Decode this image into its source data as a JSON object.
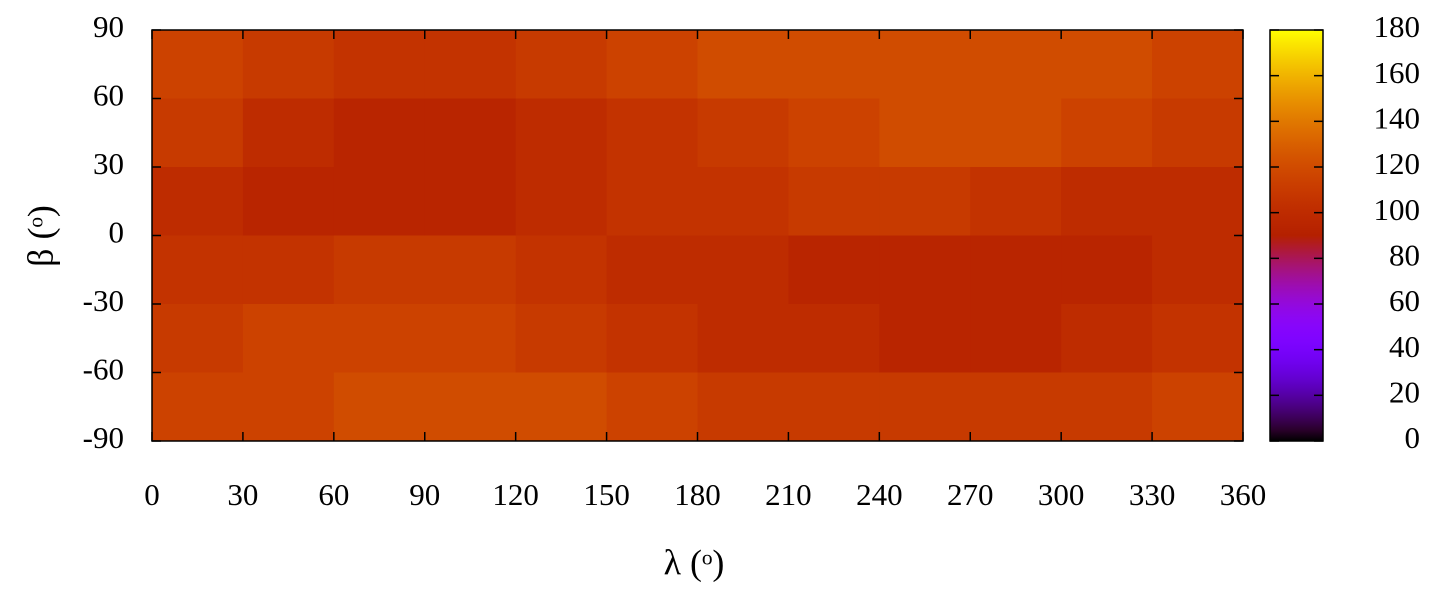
{
  "chart_data": {
    "type": "heatmap",
    "xlabel": "λ (ᵒ)",
    "ylabel": "β (ᵒ)",
    "xbins": [
      0,
      30,
      60,
      90,
      120,
      150,
      180,
      210,
      240,
      270,
      300,
      330,
      360
    ],
    "ybins": [
      90,
      60,
      30,
      0,
      -30,
      -60,
      -90
    ],
    "values": [
      [
        115,
        110,
        105,
        105,
        110,
        115,
        120,
        120,
        120,
        120,
        120,
        115
      ],
      [
        110,
        100,
        95,
        95,
        100,
        105,
        110,
        115,
        120,
        120,
        115,
        110
      ],
      [
        100,
        95,
        95,
        95,
        100,
        105,
        105,
        110,
        110,
        105,
        100,
        100
      ],
      [
        105,
        105,
        110,
        110,
        105,
        100,
        100,
        95,
        95,
        95,
        95,
        100
      ],
      [
        110,
        115,
        115,
        115,
        110,
        105,
        100,
        100,
        95,
        95,
        100,
        105
      ],
      [
        115,
        115,
        120,
        120,
        120,
        115,
        110,
        110,
        110,
        110,
        110,
        115
      ]
    ],
    "xlim": [
      0,
      360
    ],
    "xticks": [
      0,
      30,
      60,
      90,
      120,
      150,
      180,
      210,
      240,
      270,
      300,
      330,
      360
    ],
    "ylim": [
      -90,
      90
    ],
    "yticks": [
      -90,
      -60,
      -30,
      0,
      30,
      60,
      90
    ],
    "clim": [
      0,
      180
    ],
    "cticks": [
      0,
      20,
      40,
      60,
      80,
      100,
      120,
      140,
      160,
      180
    ],
    "colormap": "gnuplot"
  }
}
